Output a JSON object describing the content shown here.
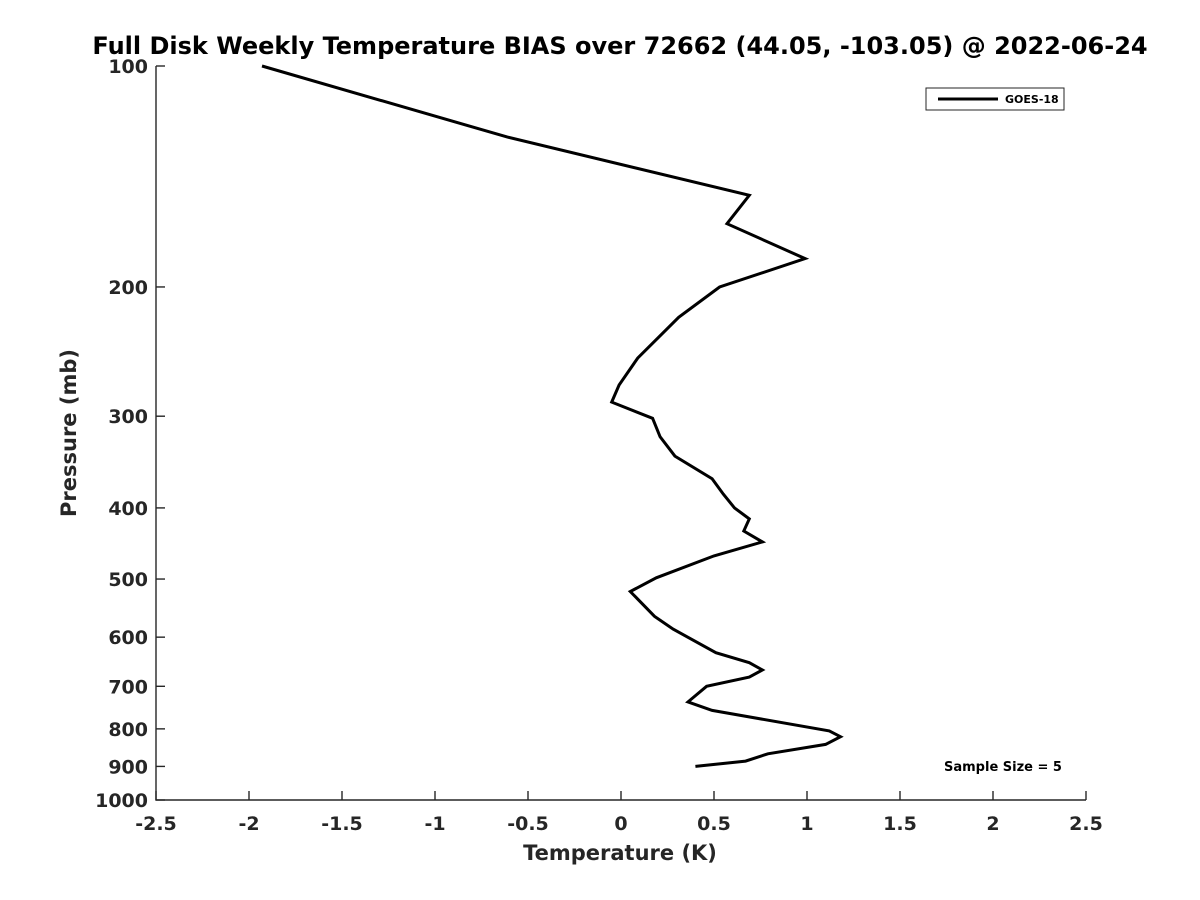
{
  "chart_data": {
    "type": "line",
    "title": "Full Disk Weekly Temperature BIAS over 72662 (44.05, -103.05) @ 2022-06-24",
    "xlabel": "Temperature (K)",
    "ylabel": "Pressure (mb)",
    "xlim": [
      -2.5,
      2.5
    ],
    "ylim": [
      100,
      1000
    ],
    "y_scale": "log",
    "y_reversed": true,
    "x_ticks": [
      "-2.5",
      "-2",
      "-1.5",
      "-1",
      "-0.5",
      "0",
      "0.5",
      "1",
      "1.5",
      "2",
      "2.5"
    ],
    "x_tick_values": [
      -2.5,
      -2,
      -1.5,
      -1,
      -0.5,
      0,
      0.5,
      1,
      1.5,
      2,
      2.5
    ],
    "y_ticks": [
      "100",
      "200",
      "300",
      "400",
      "500",
      "600",
      "700",
      "800",
      "900",
      "1000"
    ],
    "y_tick_values": [
      100,
      200,
      300,
      400,
      500,
      600,
      700,
      800,
      900,
      1000
    ],
    "grid": false,
    "legend_position": "top-right",
    "series": [
      {
        "name": "GOES-18",
        "color": "#000000",
        "points": [
          {
            "t": -1.93,
            "p": 100
          },
          {
            "t": -0.61,
            "p": 125
          },
          {
            "t": 0.69,
            "p": 150
          },
          {
            "t": 0.57,
            "p": 164
          },
          {
            "t": 0.99,
            "p": 183
          },
          {
            "t": 0.53,
            "p": 200
          },
          {
            "t": 0.31,
            "p": 220
          },
          {
            "t": 0.09,
            "p": 250
          },
          {
            "t": -0.01,
            "p": 272
          },
          {
            "t": -0.05,
            "p": 287
          },
          {
            "t": 0.17,
            "p": 302
          },
          {
            "t": 0.21,
            "p": 320
          },
          {
            "t": 0.29,
            "p": 340
          },
          {
            "t": 0.49,
            "p": 365
          },
          {
            "t": 0.55,
            "p": 383
          },
          {
            "t": 0.61,
            "p": 400
          },
          {
            "t": 0.69,
            "p": 414
          },
          {
            "t": 0.66,
            "p": 430
          },
          {
            "t": 0.76,
            "p": 445
          },
          {
            "t": 0.5,
            "p": 465
          },
          {
            "t": 0.19,
            "p": 498
          },
          {
            "t": 0.05,
            "p": 520
          },
          {
            "t": 0.18,
            "p": 562
          },
          {
            "t": 0.28,
            "p": 585
          },
          {
            "t": 0.51,
            "p": 630
          },
          {
            "t": 0.69,
            "p": 650
          },
          {
            "t": 0.76,
            "p": 665
          },
          {
            "t": 0.69,
            "p": 680
          },
          {
            "t": 0.46,
            "p": 700
          },
          {
            "t": 0.36,
            "p": 735
          },
          {
            "t": 0.49,
            "p": 755
          },
          {
            "t": 1.12,
            "p": 805
          },
          {
            "t": 1.18,
            "p": 820
          },
          {
            "t": 1.1,
            "p": 840
          },
          {
            "t": 0.79,
            "p": 865
          },
          {
            "t": 0.67,
            "p": 885
          },
          {
            "t": 0.4,
            "p": 900
          }
        ]
      }
    ],
    "annotations": [
      {
        "text": "Sample Size = 5",
        "position": "bottom-right"
      }
    ]
  }
}
